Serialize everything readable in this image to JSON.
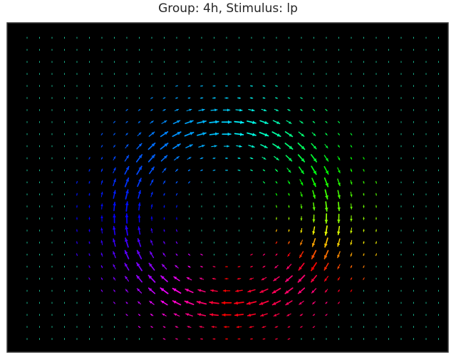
{
  "chart_data": {
    "type": "quiver",
    "title": "Group: 4h, Stimulus: lp",
    "xlabel": "",
    "ylabel": "",
    "axes_ticks_visible": false,
    "grid": false,
    "background_color": "#000000",
    "frame_color": "#3a3a3a",
    "colormap": "hsv (arrow color = flow direction)",
    "field": {
      "pattern": "clockwise rotational flow (vortex)",
      "center": [
        16.0,
        14.8
      ],
      "ring_radius": 7.5,
      "ring_width": 2.2,
      "peak_magnitude": 1.0,
      "ellipse_x_scale": 1.1,
      "grid_cols": 34,
      "grid_rows": 26,
      "x_range": [
        0,
        33
      ],
      "y_range": [
        0,
        25
      ],
      "background_arrow_color": "#1fe0b0"
    },
    "color_by_direction": [
      {
        "region": "top of ring",
        "direction": "rightward",
        "color": "#00d6ff"
      },
      {
        "region": "right of ring",
        "direction": "downward",
        "color": "#aaff00"
      },
      {
        "region": "bottom of ring",
        "direction": "leftward",
        "color": "#ff2a00"
      },
      {
        "region": "left of ring",
        "direction": "upward",
        "color": "#1a1aff"
      }
    ]
  }
}
